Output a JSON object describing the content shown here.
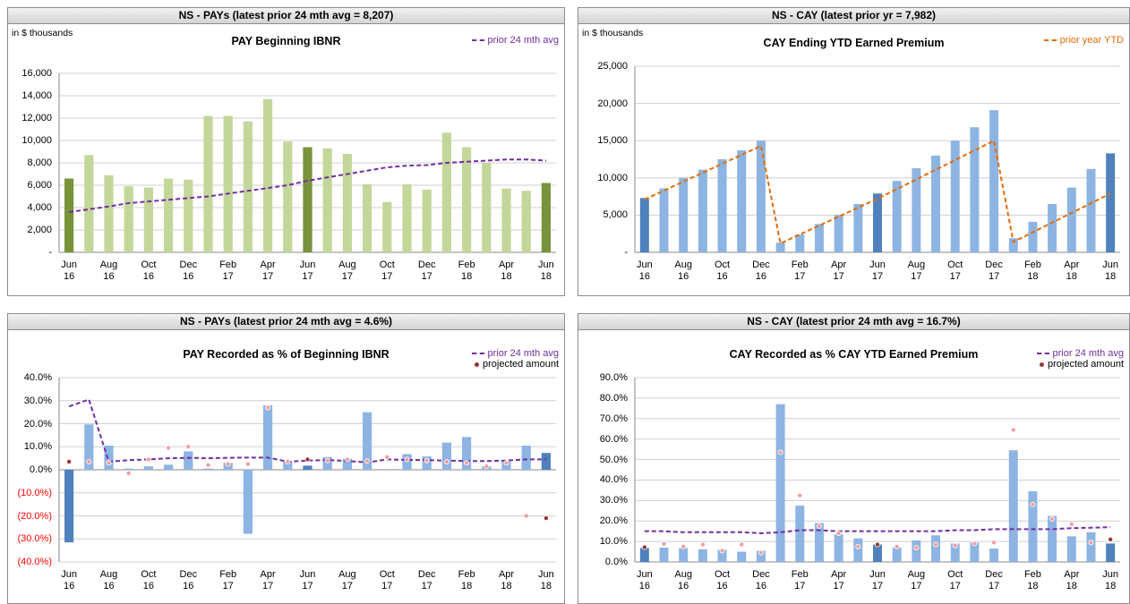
{
  "chart_data": [
    {
      "type": "bar",
      "header": "NS - PAYs (latest prior 24 mth avg = 8,207)",
      "note": "in $ thousands",
      "title": "PAY Beginning IBNR",
      "categories": [
        "Jun 16",
        null,
        "Aug 16",
        null,
        "Oct 16",
        null,
        "Dec 16",
        null,
        "Feb 17",
        null,
        "Apr 17",
        null,
        "Jun 17",
        null,
        "Aug 17",
        null,
        "Oct 17",
        null,
        "Dec 17",
        null,
        "Feb 18",
        null,
        "Apr 18",
        null,
        "Jun 18"
      ],
      "ylim": [
        0,
        16000
      ],
      "yticks": [
        {
          "value": 0,
          "label": "-"
        },
        {
          "value": 2000,
          "label": "2,000"
        },
        {
          "value": 4000,
          "label": "4,000"
        },
        {
          "value": 6000,
          "label": "6,000"
        },
        {
          "value": 8000,
          "label": "8,000"
        },
        {
          "value": 10000,
          "label": "10,000"
        },
        {
          "value": 12000,
          "label": "12,000"
        },
        {
          "value": 14000,
          "label": "14,000"
        },
        {
          "value": 16000,
          "label": "16,000"
        }
      ],
      "grid": true,
      "series": [
        {
          "type": "bar",
          "colors": [
            "#77933c",
            "#c4d79b",
            "#c4d79b",
            "#c4d79b",
            "#c4d79b",
            "#c4d79b",
            "#c4d79b",
            "#c4d79b",
            "#c4d79b",
            "#c4d79b",
            "#c4d79b",
            "#c4d79b",
            "#77933c",
            "#c4d79b",
            "#c4d79b",
            "#c4d79b",
            "#c4d79b",
            "#c4d79b",
            "#c4d79b",
            "#c4d79b",
            "#c4d79b",
            "#c4d79b",
            "#c4d79b",
            "#c4d79b",
            "#77933c"
          ],
          "values": [
            6600,
            8700,
            6900,
            5900,
            5800,
            6600,
            6500,
            12200,
            12200,
            11700,
            13700,
            9900,
            9400,
            9300,
            8800,
            6100,
            4500,
            6100,
            5600,
            10700,
            9400,
            8000,
            5700,
            5500,
            6200
          ]
        },
        {
          "type": "line",
          "name": "prior 24 mth avg",
          "color": "#7030a0",
          "values": [
            3600,
            3850,
            4100,
            4400,
            4550,
            4700,
            4850,
            5000,
            5250,
            5500,
            5750,
            6000,
            6400,
            6700,
            7000,
            7300,
            7600,
            7750,
            7800,
            8000,
            8100,
            8200,
            8300,
            8300,
            8200
          ]
        }
      ]
    },
    {
      "type": "bar",
      "header": "NS - CAY (latest prior yr = 7,982)",
      "note": "in $ thousands",
      "title": "CAY Ending YTD Earned Premium",
      "categories": [
        "Jun 16",
        null,
        "Aug 16",
        null,
        "Oct 16",
        null,
        "Dec 16",
        null,
        "Feb 17",
        null,
        "Apr 17",
        null,
        "Jun 17",
        null,
        "Aug 17",
        null,
        "Oct 17",
        null,
        "Dec 17",
        null,
        "Feb 18",
        null,
        "Apr 18",
        null,
        "Jun 18"
      ],
      "ylim": [
        0,
        25000
      ],
      "yticks": [
        {
          "value": 0,
          "label": "-"
        },
        {
          "value": 5000,
          "label": "5,000"
        },
        {
          "value": 10000,
          "label": "10,000"
        },
        {
          "value": 15000,
          "label": "15,000"
        },
        {
          "value": 20000,
          "label": "20,000"
        },
        {
          "value": 25000,
          "label": "25,000"
        }
      ],
      "grid": true,
      "series": [
        {
          "type": "bar",
          "colors": [
            "#4f81bd",
            "#8db4e2",
            "#8db4e2",
            "#8db4e2",
            "#8db4e2",
            "#8db4e2",
            "#8db4e2",
            "#8db4e2",
            "#8db4e2",
            "#8db4e2",
            "#8db4e2",
            "#8db4e2",
            "#4f81bd",
            "#8db4e2",
            "#8db4e2",
            "#8db4e2",
            "#8db4e2",
            "#8db4e2",
            "#8db4e2",
            "#8db4e2",
            "#8db4e2",
            "#8db4e2",
            "#8db4e2",
            "#8db4e2",
            "#4f81bd"
          ],
          "values": [
            7300,
            8600,
            10000,
            11100,
            12500,
            13700,
            15000,
            1300,
            2400,
            3800,
            5000,
            6500,
            7900,
            9600,
            11300,
            13000,
            15000,
            16800,
            19100,
            1900,
            4100,
            6500,
            8700,
            11200,
            13300
          ]
        },
        {
          "type": "line",
          "name": "prior year YTD",
          "color": "#e46c0a",
          "values": [
            7100,
            8300,
            9500,
            10700,
            11900,
            13100,
            14300,
            1200,
            2400,
            3600,
            4800,
            6000,
            7200,
            8500,
            9800,
            11100,
            12400,
            13700,
            15000,
            1400,
            2700,
            4000,
            5300,
            6600,
            7900
          ]
        }
      ]
    },
    {
      "type": "bar",
      "header": "NS - PAYs (latest prior 24 mth avg = 4.6%)",
      "title": "PAY Recorded as % of Beginning IBNR",
      "categories": [
        "Jun 16",
        null,
        "Aug 16",
        null,
        "Oct 16",
        null,
        "Dec 16",
        null,
        "Feb 17",
        null,
        "Apr 17",
        null,
        "Jun 17",
        null,
        "Aug 17",
        null,
        "Oct 17",
        null,
        "Dec 17",
        null,
        "Feb 18",
        null,
        "Apr 18",
        null,
        "Jun 18"
      ],
      "ylim": [
        -40,
        40
      ],
      "yticks": [
        {
          "value": -40,
          "label": "(40.0%)"
        },
        {
          "value": -30,
          "label": "(30.0%)"
        },
        {
          "value": -20,
          "label": "(20.0%)"
        },
        {
          "value": -10,
          "label": "(10.0%)"
        },
        {
          "value": 0,
          "label": "0.0%"
        },
        {
          "value": 10,
          "label": "10.0%"
        },
        {
          "value": 20,
          "label": "20.0%"
        },
        {
          "value": 30,
          "label": "30.0%"
        },
        {
          "value": 40,
          "label": "40.0%"
        }
      ],
      "grid": true,
      "series": [
        {
          "type": "bar",
          "colors": [
            "#4f81bd",
            "#8db4e2",
            "#8db4e2",
            "#8db4e2",
            "#8db4e2",
            "#8db4e2",
            "#8db4e2",
            "#8db4e2",
            "#8db4e2",
            "#8db4e2",
            "#8db4e2",
            "#8db4e2",
            "#4f81bd",
            "#8db4e2",
            "#8db4e2",
            "#8db4e2",
            "#8db4e2",
            "#8db4e2",
            "#8db4e2",
            "#8db4e2",
            "#8db4e2",
            "#8db4e2",
            "#8db4e2",
            "#8db4e2",
            "#4f81bd"
          ],
          "values": [
            -31.5,
            19.7,
            10.5,
            0.5,
            1.5,
            2.2,
            8.0,
            0.5,
            3.0,
            -27.8,
            28.0,
            3.5,
            1.8,
            5.5,
            4.8,
            25.0,
            0.3,
            6.8,
            5.8,
            11.8,
            14.2,
            1.5,
            3.5,
            10.5,
            7.3
          ]
        },
        {
          "type": "line",
          "name": "prior 24 mth avg",
          "color": "#7030a0",
          "values": [
            27.5,
            30.5,
            3.5,
            4.2,
            4.5,
            5.0,
            5.2,
            5.0,
            5.2,
            5.3,
            5.3,
            3.5,
            4.0,
            4.2,
            3.8,
            3.2,
            4.5,
            4.3,
            4.2,
            4.0,
            3.8,
            3.8,
            4.0,
            4.5,
            4.5
          ]
        },
        {
          "type": "dots",
          "name": "projected amount",
          "color": "#953735",
          "colors": [
            "#953735",
            "#f2a0a0",
            "#f2a0a0",
            "#f2a0a0",
            "#f2a0a0",
            "#f2a0a0",
            "#f2a0a0",
            "#f2a0a0",
            "#f2a0a0",
            "#f2a0a0",
            "#f2a0a0",
            "#f2a0a0",
            "#953735",
            "#f2a0a0",
            "#f2a0a0",
            "#f2a0a0",
            "#f2a0a0",
            "#f2a0a0",
            "#f2a0a0",
            "#f2a0a0",
            "#f2a0a0",
            "#f2a0a0",
            "#f2a0a0",
            "#f2a0a0",
            "#953735"
          ],
          "values": [
            3.5,
            3.5,
            3.0,
            -1.5,
            4.5,
            9.5,
            10.0,
            2.0,
            2.5,
            2.5,
            27.0,
            3.5,
            4.5,
            4.0,
            4.5,
            3.8,
            5.5,
            4.5,
            4.0,
            3.5,
            3.0,
            1.5,
            3.0,
            -20.0,
            -21.0
          ]
        }
      ]
    },
    {
      "type": "bar",
      "header": "NS - CAY (latest prior 24 mth avg = 16.7%)",
      "title": "CAY Recorded as % CAY YTD Earned Premium",
      "categories": [
        "Jun 16",
        null,
        "Aug 16",
        null,
        "Oct 16",
        null,
        "Dec 16",
        null,
        "Feb 17",
        null,
        "Apr 17",
        null,
        "Jun 17",
        null,
        "Aug 17",
        null,
        "Oct 17",
        null,
        "Dec 17",
        null,
        "Feb 18",
        null,
        "Apr 18",
        null,
        "Jun 18"
      ],
      "ylim": [
        0,
        90
      ],
      "yticks": [
        {
          "value": 0,
          "label": "0.0%"
        },
        {
          "value": 10,
          "label": "10.0%"
        },
        {
          "value": 20,
          "label": "20.0%"
        },
        {
          "value": 30,
          "label": "30.0%"
        },
        {
          "value": 40,
          "label": "40.0%"
        },
        {
          "value": 50,
          "label": "50.0%"
        },
        {
          "value": 60,
          "label": "60.0%"
        },
        {
          "value": 70,
          "label": "70.0%"
        },
        {
          "value": 80,
          "label": "80.0%"
        },
        {
          "value": 90,
          "label": "90.0%"
        }
      ],
      "grid": true,
      "series": [
        {
          "type": "bar",
          "colors": [
            "#4f81bd",
            "#8db4e2",
            "#8db4e2",
            "#8db4e2",
            "#8db4e2",
            "#8db4e2",
            "#8db4e2",
            "#8db4e2",
            "#8db4e2",
            "#8db4e2",
            "#8db4e2",
            "#8db4e2",
            "#4f81bd",
            "#8db4e2",
            "#8db4e2",
            "#8db4e2",
            "#8db4e2",
            "#8db4e2",
            "#8db4e2",
            "#8db4e2",
            "#8db4e2",
            "#8db4e2",
            "#8db4e2",
            "#8db4e2",
            "#4f81bd"
          ],
          "values": [
            6.8,
            7.0,
            6.8,
            6.2,
            6.0,
            5.0,
            5.5,
            77.0,
            27.5,
            19.0,
            13.5,
            11.5,
            8.5,
            7.0,
            10.5,
            13.0,
            9.0,
            9.5,
            6.5,
            54.5,
            34.5,
            22.5,
            12.5,
            14.5,
            9.0
          ]
        },
        {
          "type": "line",
          "name": "prior 24 mth avg",
          "color": "#7030a0",
          "values": [
            15,
            15,
            14.5,
            14.5,
            14.5,
            14.5,
            14,
            14.5,
            15.5,
            15.5,
            15,
            15,
            15,
            15,
            15,
            15,
            15.5,
            15.5,
            16,
            16,
            16,
            16,
            16.5,
            16.7,
            17
          ]
        },
        {
          "type": "dots",
          "name": "projected amount",
          "color": "#953735",
          "colors": [
            "#953735",
            "#f2a0a0",
            "#f2a0a0",
            "#f2a0a0",
            "#f2a0a0",
            "#f2a0a0",
            "#f2a0a0",
            "#f2a0a0",
            "#f2a0a0",
            "#f2a0a0",
            "#f2a0a0",
            "#f2a0a0",
            "#953735",
            "#f2a0a0",
            "#f2a0a0",
            "#f2a0a0",
            "#f2a0a0",
            "#f2a0a0",
            "#f2a0a0",
            "#f2a0a0",
            "#f2a0a0",
            "#f2a0a0",
            "#f2a0a0",
            "#f2a0a0",
            "#953735"
          ],
          "values": [
            7.2,
            8.8,
            7.5,
            8.5,
            5.5,
            8.5,
            4.5,
            53.5,
            32.5,
            17.5,
            14.0,
            7.5,
            8.5,
            7.5,
            7.0,
            8.5,
            8.0,
            9.0,
            9.5,
            64.5,
            28.0,
            21.0,
            18.5,
            9.5,
            11.0
          ]
        }
      ]
    }
  ]
}
